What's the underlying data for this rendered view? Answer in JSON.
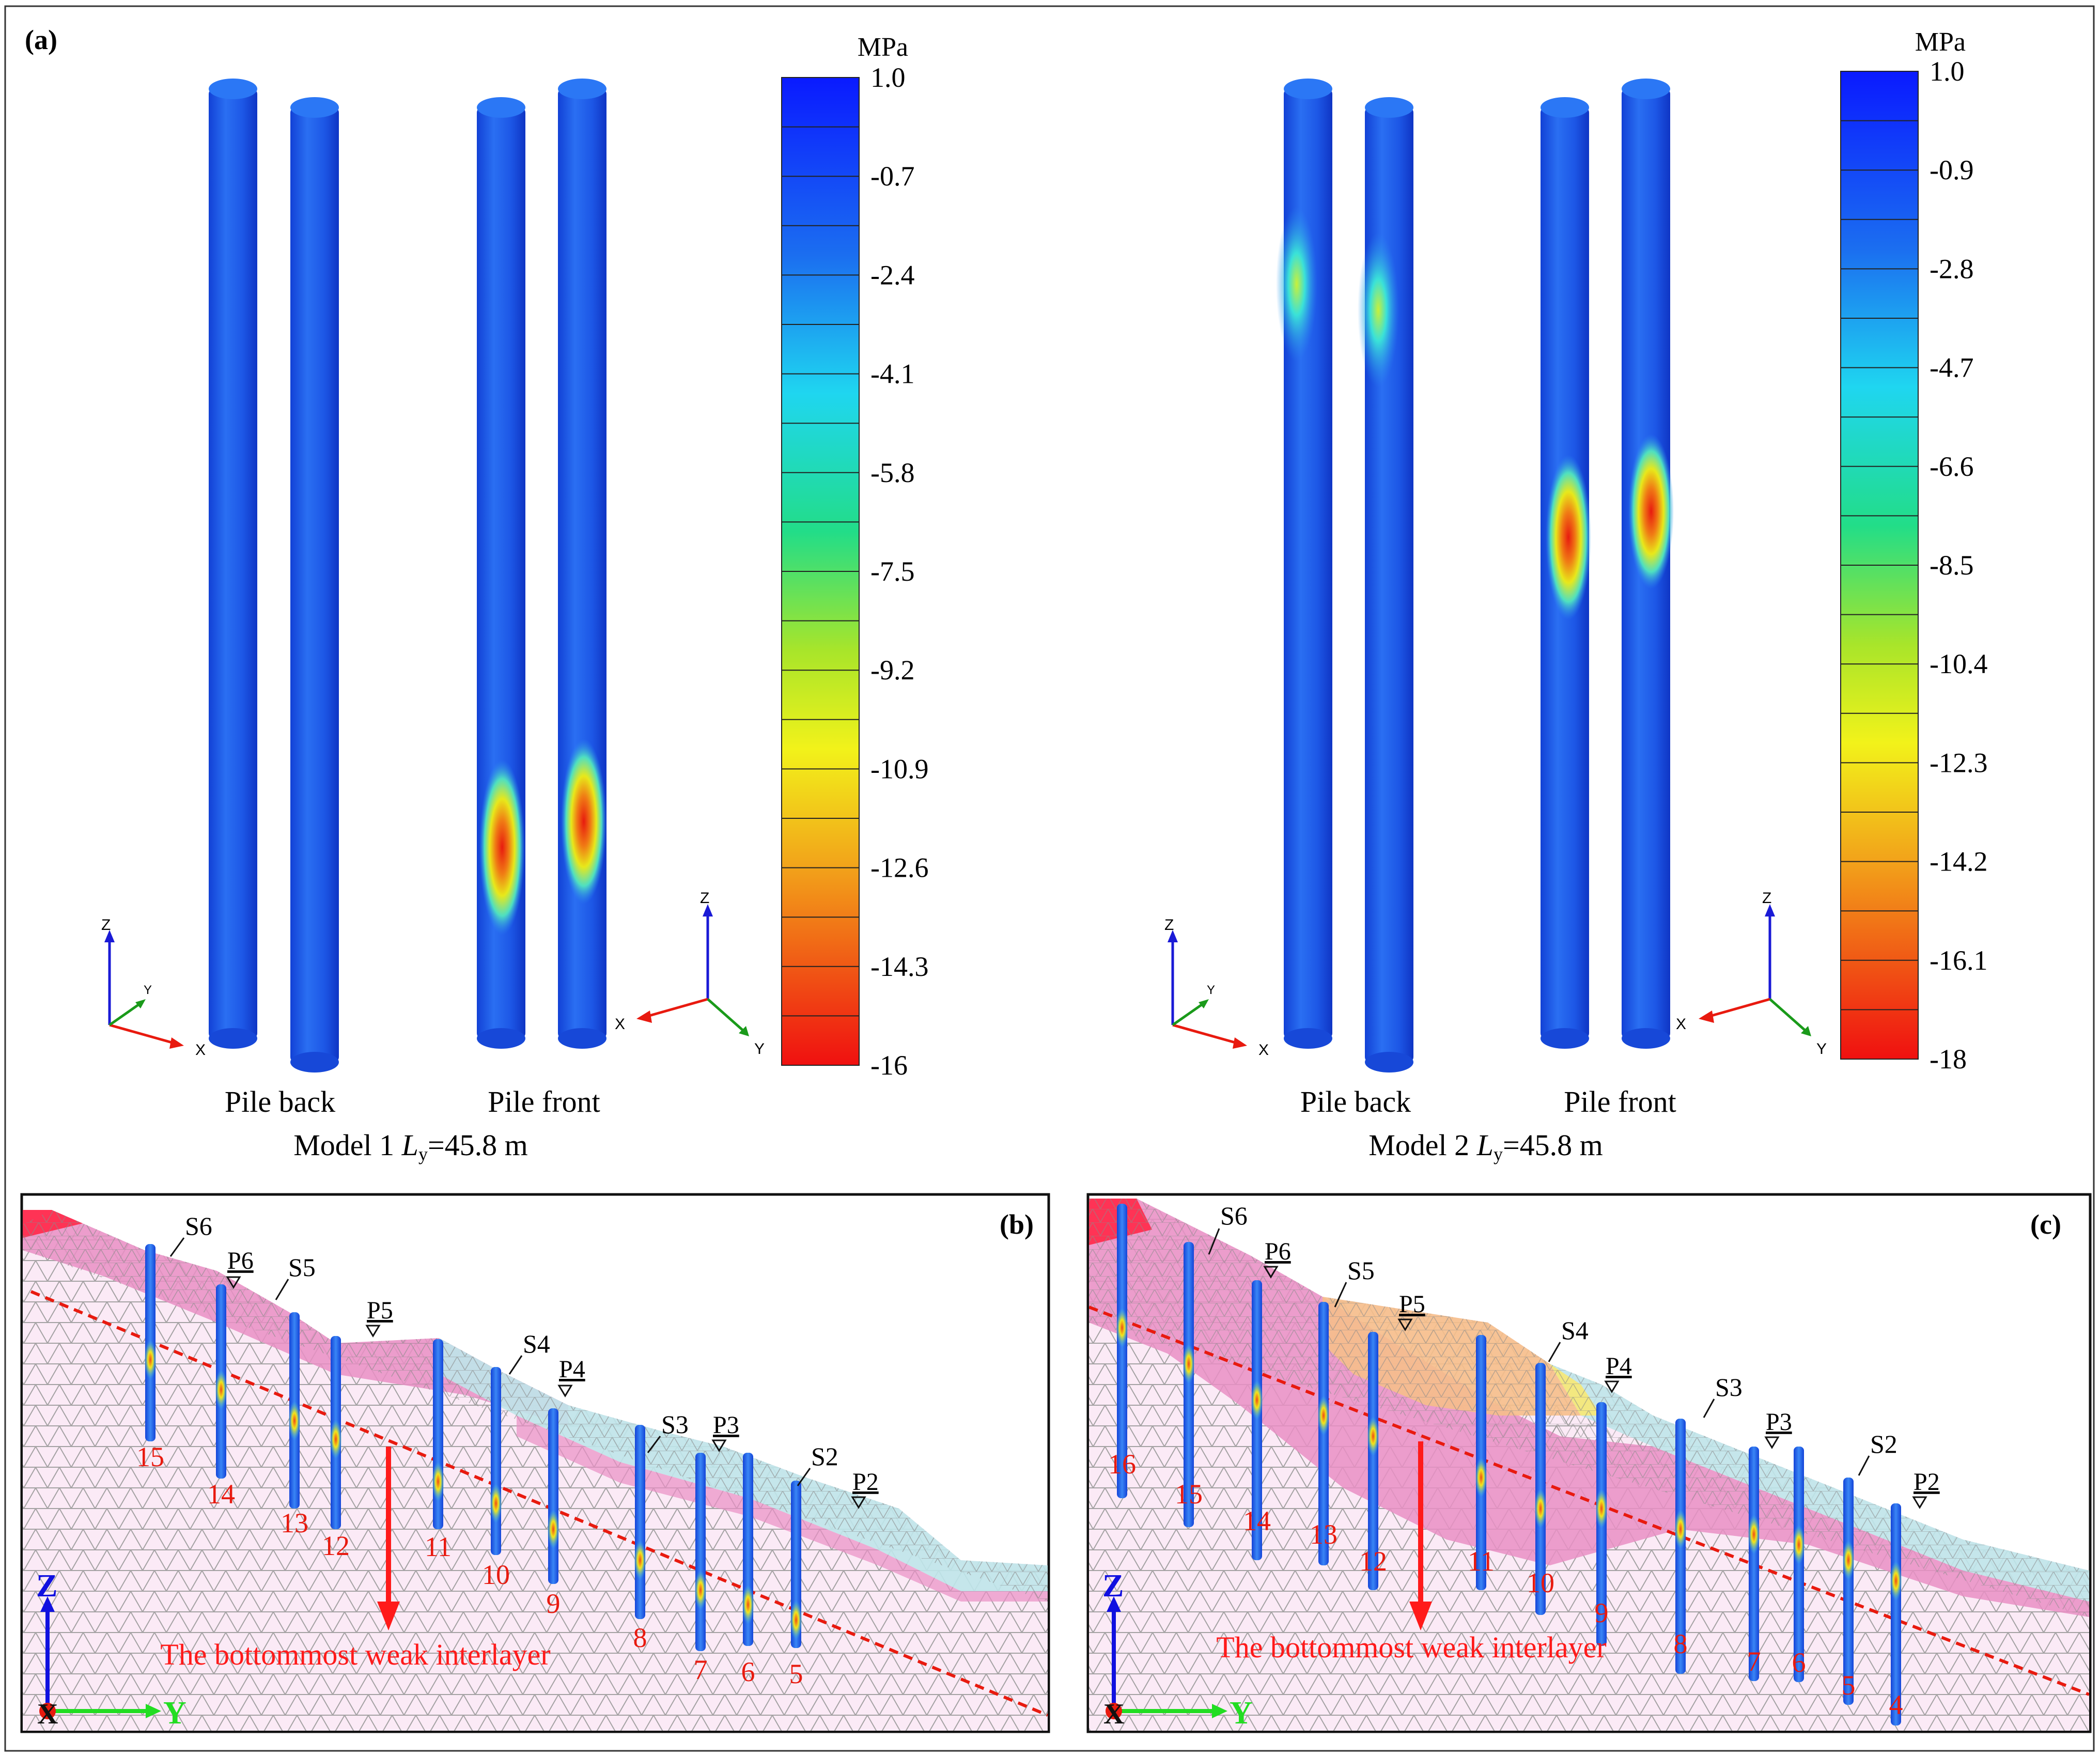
{
  "figure": {
    "panel_a": {
      "label": "(a)",
      "models": [
        {
          "unit": "MPa",
          "colorbar_ticks": [
            "1.0",
            "-0.7",
            "-2.4",
            "-4.1",
            "-5.8",
            "-7.5",
            "-9.2",
            "-10.9",
            "-12.6",
            "-14.3",
            "-16"
          ],
          "views": [
            "Pile back",
            "Pile front"
          ],
          "caption_prefix": "Model 1 ",
          "caption_var": "L",
          "caption_sub": "y",
          "caption_value": "=45.8 m",
          "hotspots": "lower"
        },
        {
          "unit": "MPa",
          "colorbar_ticks": [
            "1.0",
            "-0.9",
            "-2.8",
            "-4.7",
            "-6.6",
            "-8.5",
            "-10.4",
            "-12.3",
            "-14.2",
            "-16.1",
            "-18"
          ],
          "views": [
            "Pile back",
            "Pile front"
          ],
          "caption_prefix": "Model 2 ",
          "caption_var": "L",
          "caption_sub": "y",
          "caption_value": "=45.8 m",
          "hotspots": "upper"
        }
      ],
      "axis_labels": {
        "x": "X",
        "y": "Y",
        "z": "Z"
      }
    },
    "panel_b": {
      "label": "(b)",
      "piles": [
        "15",
        "14",
        "13",
        "12",
        "11",
        "10",
        "9",
        "8",
        "7",
        "6",
        "5"
      ],
      "slip_surfaces": [
        "S6",
        "S5",
        "S4",
        "S3",
        "S2"
      ],
      "water_levels": [
        "P6",
        "P5",
        "P4",
        "P3",
        "P2"
      ],
      "annotation": "The bottommost weak interlayer",
      "axes": {
        "z": "Z",
        "y": "Y",
        "x": "X"
      }
    },
    "panel_c": {
      "label": "(c)",
      "piles": [
        "16",
        "15",
        "14",
        "13",
        "12",
        "11",
        "10",
        "9",
        "8",
        "7",
        "6",
        "5",
        "4"
      ],
      "slip_surfaces": [
        "S6",
        "S5",
        "S4",
        "S3",
        "S2"
      ],
      "water_levels": [
        "P6",
        "P5",
        "P4",
        "P3",
        "P2"
      ],
      "annotation": "The bottommost weak interlayer",
      "axes": {
        "z": "Z",
        "y": "Y",
        "x": "X"
      }
    },
    "colors": {
      "pile_blue": "#1a55e0",
      "hotspot_red": "#e81a0f",
      "annotation_red": "#ff1a1a",
      "slope_pink": "#e98fc4",
      "slope_cyan": "#bfe6ea",
      "slope_orange": "#f6bf8b"
    }
  }
}
